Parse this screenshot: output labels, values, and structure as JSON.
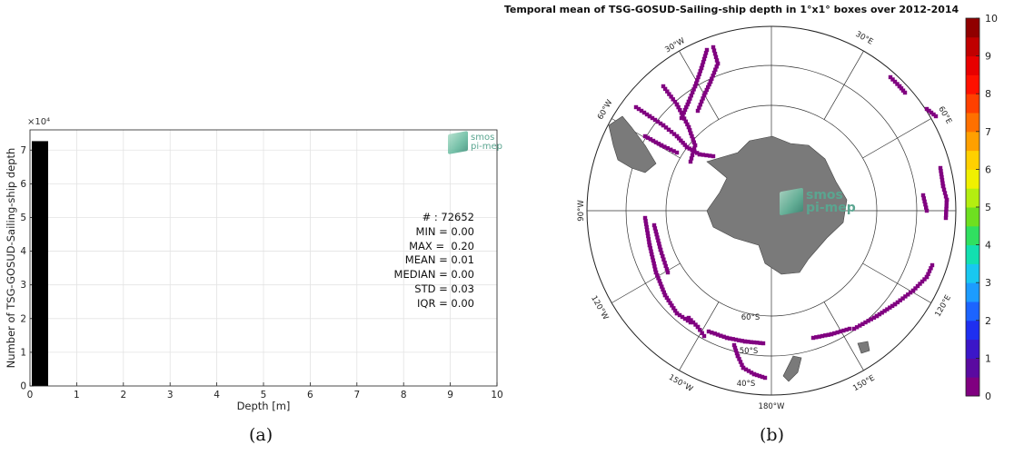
{
  "panels": {
    "a": {
      "caption": "(a)",
      "stats": [
        "# : 72652",
        "MIN = 0.00",
        "MAX =  0.20",
        "MEAN = 0.01",
        "MEDIAN = 0.00",
        "STD = 0.03",
        "IQR = 0.00"
      ],
      "logo": [
        "smos",
        "pi-mep"
      ]
    },
    "b": {
      "caption": "(b)",
      "logo": [
        "smos",
        "pi-mep"
      ]
    }
  },
  "chart_data": [
    {
      "type": "bar",
      "title": "",
      "xlabel": "Depth [m]",
      "ylabel": "Number of TSG-GOSUD-Sailing-ship depth",
      "y_multiplier_label": "×10⁴",
      "x_ticks": [
        0,
        1,
        2,
        3,
        4,
        5,
        6,
        7,
        8,
        9,
        10
      ],
      "y_ticks": [
        0,
        1,
        2,
        3,
        4,
        5,
        6,
        7
      ],
      "xlim": [
        0,
        10
      ],
      "ylim": [
        0,
        7.6
      ],
      "grid": true,
      "bins": [
        {
          "x0": 0.0,
          "x1": 0.35,
          "value": 7.2652
        }
      ],
      "bar_color": "#000000"
    },
    {
      "type": "heatmap",
      "projection": "south polar stereographic",
      "title": "Temporal mean of TSG-GOSUD-Sailing-ship depth in 1°x1° boxes over 2012-2014",
      "lon_labels": [
        "30°W",
        "30°E",
        "60°W",
        "60°E",
        "90°W",
        "120°W",
        "120°E",
        "150°W",
        "150°E",
        "180°W"
      ],
      "lat_labels": [
        "60°S",
        "50°S",
        "40°S"
      ],
      "colorbar": {
        "min": 0,
        "max": 10,
        "ticks": [
          0,
          1,
          2,
          3,
          4,
          5,
          6,
          7,
          8,
          9,
          10
        ],
        "colors": [
          "#800080",
          "#5a0aa0",
          "#3b16c8",
          "#1e2ff0",
          "#1c64ff",
          "#1c9cff",
          "#18c8f0",
          "#12e0b0",
          "#30e060",
          "#6ee020",
          "#b4ee10",
          "#f0f000",
          "#ffd000",
          "#ffa000",
          "#ff7000",
          "#ff4000",
          "#ff1000",
          "#e80000",
          "#c00000",
          "#900000"
        ]
      },
      "data_value": 0,
      "data_color": "#800080"
    }
  ]
}
